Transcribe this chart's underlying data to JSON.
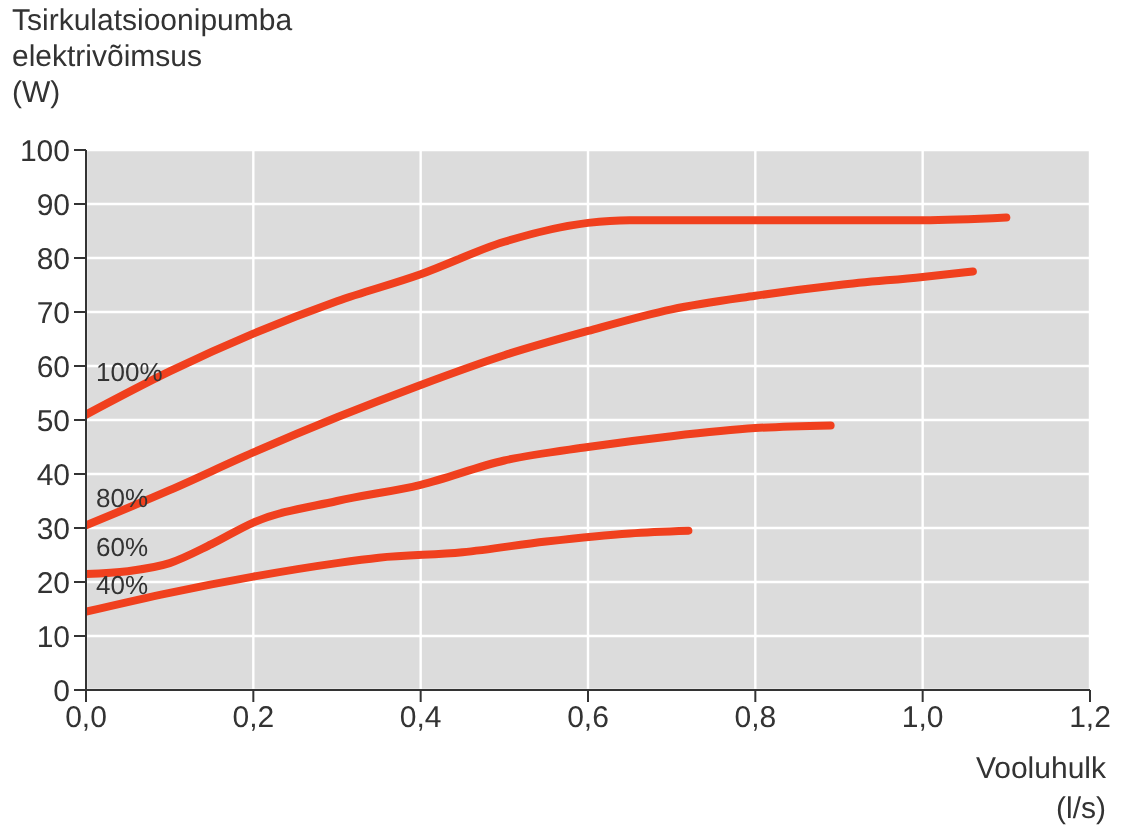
{
  "chart_data": {
    "type": "line",
    "ylabel": "Tsirkulatsioonipumba elektrivõimsus (W)",
    "xlabel": "Vooluhulk (l/s)",
    "xlim": [
      0,
      1.2
    ],
    "xticks": [
      {
        "value": 0,
        "label": "0,0"
      },
      {
        "value": 0.2,
        "label": "0,2"
      },
      {
        "value": 0.4,
        "label": "0,4"
      },
      {
        "value": 0.6,
        "label": "0,6"
      },
      {
        "value": 0.8,
        "label": "0,8"
      },
      {
        "value": 1.0,
        "label": "1,0"
      },
      {
        "value": 1.2,
        "label": "1,2"
      }
    ],
    "ylim": [
      0,
      100
    ],
    "yticks": [
      0,
      10,
      20,
      30,
      40,
      50,
      60,
      70,
      80,
      90,
      100
    ],
    "grid": true,
    "series": [
      {
        "name": "100%",
        "color": "#f0401e",
        "x": [
          0,
          0.1,
          0.2,
          0.3,
          0.4,
          0.5,
          0.6,
          0.65,
          0.8,
          1.0,
          1.1
        ],
        "values": [
          51,
          59,
          66,
          72,
          77,
          83,
          86.5,
          87,
          87,
          87,
          87.5
        ]
      },
      {
        "name": "80%",
        "color": "#f0401e",
        "x": [
          0,
          0.1,
          0.2,
          0.3,
          0.4,
          0.5,
          0.6,
          0.7,
          0.8,
          0.9,
          1.0,
          1.06
        ],
        "values": [
          30.5,
          37,
          44,
          50.5,
          56.5,
          62,
          66.5,
          70.5,
          73,
          75,
          76.5,
          77.5
        ]
      },
      {
        "name": "60%",
        "color": "#f0401e",
        "x": [
          0,
          0.05,
          0.1,
          0.15,
          0.2,
          0.3,
          0.4,
          0.5,
          0.6,
          0.7,
          0.8,
          0.89
        ],
        "values": [
          21.5,
          22,
          23.5,
          27,
          31,
          35,
          38,
          42.5,
          45,
          47,
          48.5,
          49
        ]
      },
      {
        "name": "40%",
        "color": "#f0401e",
        "x": [
          0,
          0.1,
          0.2,
          0.3,
          0.35,
          0.45,
          0.55,
          0.65,
          0.72
        ],
        "values": [
          14.5,
          18,
          21,
          23.5,
          24.5,
          25.5,
          27.5,
          29,
          29.5
        ]
      }
    ]
  }
}
